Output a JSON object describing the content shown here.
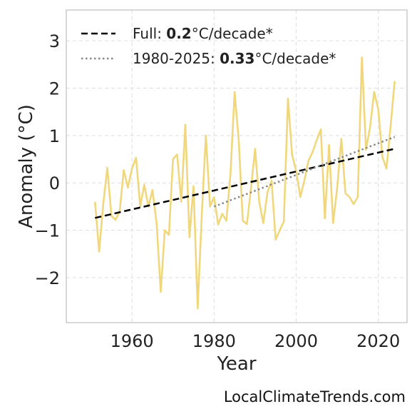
{
  "chart_data": {
    "type": "line",
    "xlabel": "Year",
    "ylabel": "Anomaly (°C)",
    "xlim": [
      1944,
      2027
    ],
    "ylim": [
      -2.95,
      3.65
    ],
    "xticks": [
      1960,
      1980,
      2000,
      2020
    ],
    "yticks": [
      -2,
      -1,
      0,
      1,
      2,
      3
    ],
    "ytick_labels": [
      "−2",
      "−1",
      "0",
      "1",
      "2",
      "3"
    ],
    "grid": true,
    "legend_position": "top-left",
    "colors": {
      "series": "#f0d77c",
      "trend_full": "#000000",
      "trend_recent": "#888888",
      "frame": "#cccccc",
      "grid": "#dddddd"
    },
    "series": [
      {
        "x": [
          1951,
          1952,
          1953,
          1954,
          1955,
          1956,
          1957,
          1958,
          1959,
          1960,
          1961,
          1962,
          1963,
          1964,
          1965,
          1966,
          1967,
          1968,
          1969,
          1970,
          1971,
          1972,
          1973,
          1974,
          1975,
          1976,
          1977,
          1978,
          1979,
          1980,
          1981,
          1982,
          1983,
          1984,
          1985,
          1986,
          1987,
          1988,
          1989,
          1990,
          1991,
          1992,
          1993,
          1994,
          1995,
          1996,
          1997,
          1998,
          1999,
          2000,
          2001,
          2002,
          2003,
          2004,
          2005,
          2006,
          2007,
          2008,
          2009,
          2010,
          2011,
          2012,
          2013,
          2014,
          2015,
          2016,
          2017,
          2018,
          2019,
          2020,
          2021,
          2022,
          2023,
          2024
        ],
        "y": [
          -0.4,
          -1.45,
          -0.45,
          0.32,
          -0.7,
          -0.78,
          -0.6,
          0.27,
          -0.1,
          0.3,
          0.53,
          -0.5,
          -0.04,
          -0.5,
          -0.15,
          -0.85,
          -2.3,
          -1.0,
          -1.1,
          0.5,
          0.6,
          -0.4,
          1.23,
          -1.15,
          -0.07,
          -2.65,
          -0.7,
          1.0,
          -0.5,
          -0.3,
          -0.88,
          -0.65,
          -0.8,
          0.2,
          1.92,
          0.9,
          -0.8,
          -0.87,
          -0.1,
          0.72,
          -0.4,
          -0.85,
          -0.2,
          0.05,
          -1.2,
          -1.0,
          -0.82,
          1.78,
          0.6,
          0.25,
          -0.3,
          0.05,
          0.47,
          0.65,
          0.9,
          1.13,
          -0.75,
          0.8,
          -0.85,
          -0.1,
          0.93,
          -0.22,
          -0.3,
          -0.45,
          -0.3,
          2.65,
          0.7,
          1.18,
          1.92,
          1.55,
          0.55,
          0.3,
          1.2,
          2.15
        ]
      }
    ],
    "trend_lines": [
      {
        "style": "dashed",
        "x": [
          1951,
          2024
        ],
        "y": [
          -0.74,
          0.72
        ]
      },
      {
        "style": "dotted",
        "x": [
          1980,
          2024
        ],
        "y": [
          -0.5,
          0.97
        ]
      }
    ]
  },
  "legend": [
    {
      "prefix": "Full: ",
      "bold": "0.2",
      "suffix": "°C/decade*"
    },
    {
      "prefix": "1980-2025: ",
      "bold": "0.33",
      "suffix": "°C/decade*"
    }
  ],
  "credit": "LocalClimateTrends.com"
}
